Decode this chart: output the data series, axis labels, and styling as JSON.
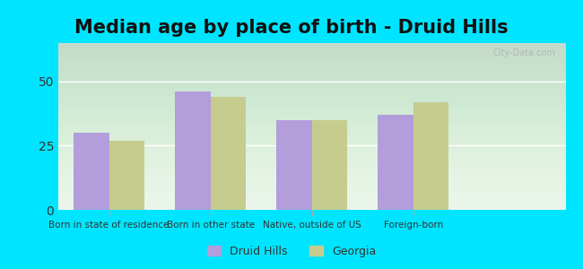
{
  "title": "Median age by place of birth - Druid Hills",
  "categories": [
    "Born in state of residence",
    "Born in other state",
    "Native, outside of US",
    "Foreign-born"
  ],
  "druid_hills": [
    30,
    46,
    35,
    37
  ],
  "georgia": [
    27,
    44,
    35,
    42
  ],
  "druid_hills_color": "#b39ddb",
  "georgia_color": "#c5cc8e",
  "ylim": [
    0,
    65
  ],
  "yticks": [
    0,
    25,
    50
  ],
  "background_outer": "#00e5ff",
  "background_inner_top": "#e8f5e9",
  "background_inner_bottom": "#ffffff",
  "legend_druid_hills": "Druid Hills",
  "legend_georgia": "Georgia",
  "bar_width": 0.35,
  "title_fontsize": 15,
  "watermark": "City-Data.com"
}
